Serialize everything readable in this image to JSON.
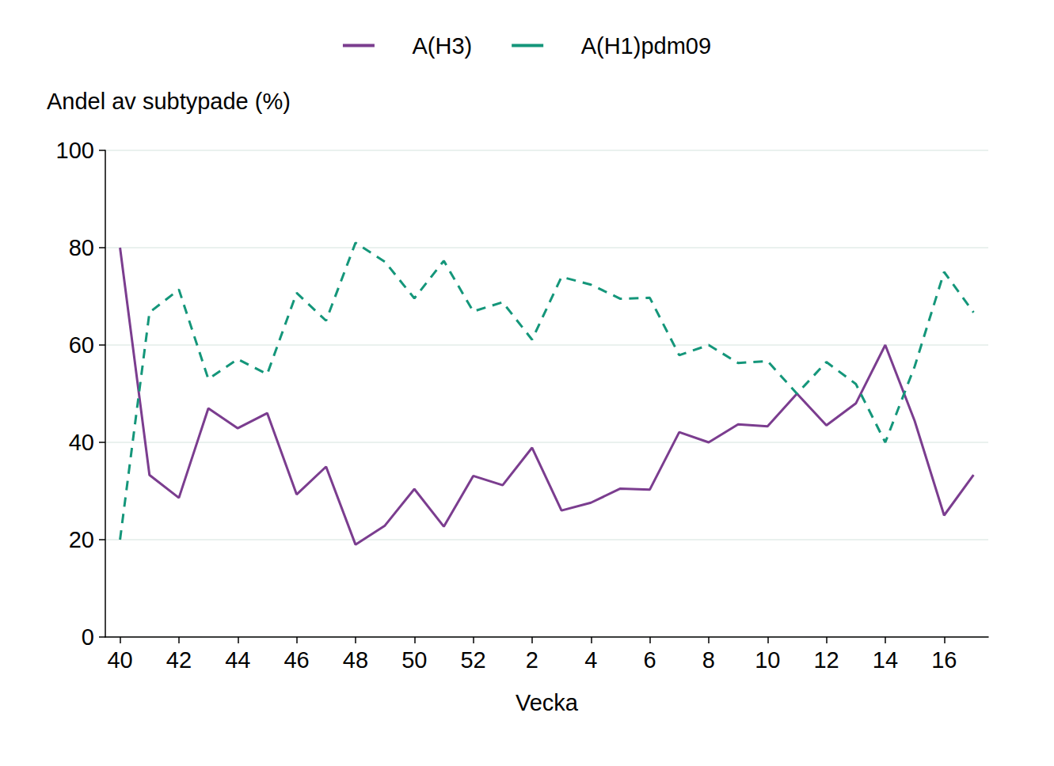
{
  "chart_data": {
    "type": "line",
    "xlabel": "Vecka",
    "ylabel": "Andel av subtypade (%)",
    "categories": [
      "40",
      null,
      "42",
      null,
      "44",
      null,
      "46",
      null,
      "48",
      null,
      "50",
      null,
      "52",
      null,
      "2",
      null,
      "4",
      null,
      "6",
      null,
      "8",
      null,
      "10",
      null,
      "12",
      null,
      "14",
      null,
      "16",
      null
    ],
    "series": [
      {
        "name": "A(H3)",
        "color": "#7b3d8f",
        "line_style": "solid",
        "values": [
          80,
          33.3,
          28.6,
          47,
          42.9,
          46,
          29.3,
          35,
          19,
          22.9,
          30.4,
          22.7,
          33.1,
          31.2,
          38.9,
          26,
          27.6,
          30.5,
          30.3,
          42.1,
          40,
          43.7,
          43.3,
          50,
          43.5,
          48,
          60,
          44.4,
          25,
          33.3
        ]
      },
      {
        "name": "A(H1)pdm09",
        "color": "#14967a",
        "line_style": "dashed",
        "values": [
          20,
          66.7,
          71.4,
          53,
          57.1,
          54,
          70.7,
          65,
          81,
          77.1,
          69.6,
          77.3,
          66.9,
          68.8,
          61.1,
          74,
          72.4,
          69.5,
          69.7,
          57.9,
          60,
          56.3,
          56.7,
          50,
          56.5,
          52,
          40,
          55.6,
          75,
          66.7
        ]
      }
    ],
    "ylim": [
      0,
      100
    ],
    "yticks": [
      0,
      20,
      40,
      60,
      80,
      100
    ],
    "grid": true,
    "legend": "top"
  }
}
